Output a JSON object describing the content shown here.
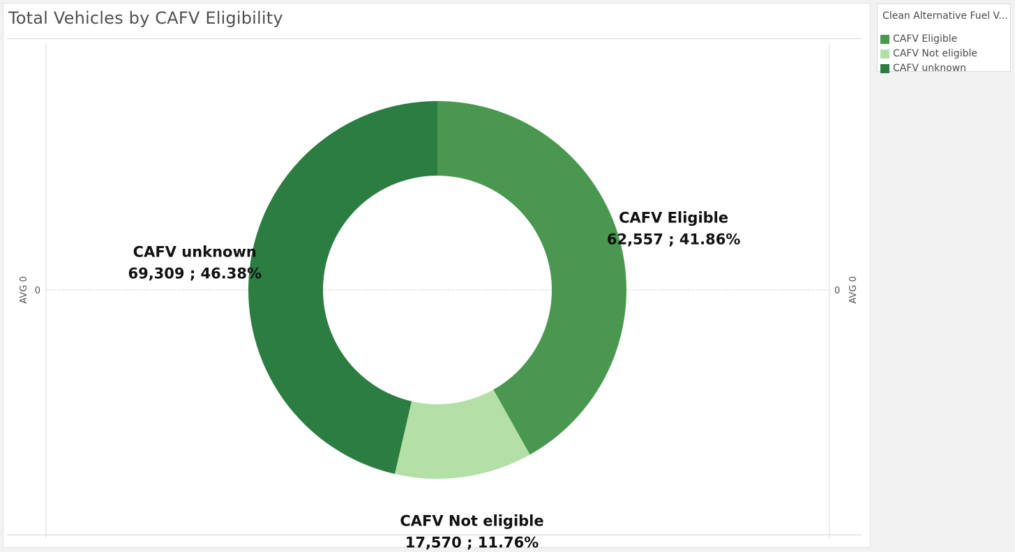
{
  "chart_data": {
    "type": "pie",
    "title": "Total Vehicles by CAFV Eligibility",
    "donut": true,
    "legend": {
      "title": "Clean Alternative Fuel V...",
      "position": "top-right"
    },
    "slices": [
      {
        "name": "CAFV Eligible",
        "value": 62557,
        "value_label": "62,557",
        "percent_label": "41.86%",
        "color": "#4a9850"
      },
      {
        "name": "CAFV Not eligible",
        "value": 17570,
        "value_label": "17,570",
        "percent_label": "11.76%",
        "color": "#b4e0a7"
      },
      {
        "name": "CAFV unknown",
        "value": 69309,
        "value_label": "69,309",
        "percent_label": "46.38%",
        "color": "#2c7d42"
      }
    ],
    "axes": {
      "left_title": "AVG 0",
      "right_title": "AVG 0",
      "left_tick": "0",
      "right_tick": "0"
    }
  }
}
